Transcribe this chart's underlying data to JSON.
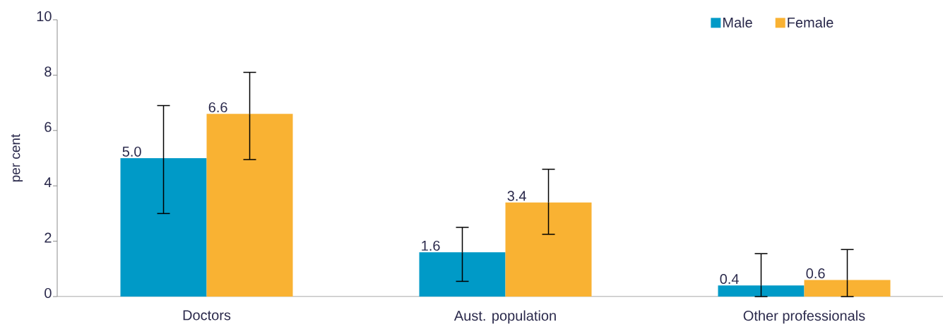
{
  "chart_data": {
    "type": "bar",
    "ylabel": "per cent",
    "categories": [
      "Doctors",
      "Aust. population",
      "Other professionals"
    ],
    "series": [
      {
        "name": "Male",
        "color": "#009ac7",
        "values": [
          5.0,
          1.6,
          0.4
        ],
        "value_labels": [
          "5.0",
          "1.6",
          "0.4"
        ],
        "errors": [
          [
            3.0,
            6.9
          ],
          [
            0.55,
            2.5
          ],
          [
            0.0,
            1.55
          ]
        ]
      },
      {
        "name": "Female",
        "color": "#f9b233",
        "values": [
          6.6,
          3.4,
          0.6
        ],
        "value_labels": [
          "6.6",
          "3.4",
          "0.6"
        ],
        "errors": [
          [
            4.95,
            8.1
          ],
          [
            2.25,
            4.6
          ],
          [
            0.0,
            1.7
          ]
        ]
      }
    ],
    "ylim": [
      0,
      10
    ],
    "yticks": [
      0,
      2,
      4,
      6,
      8,
      10
    ],
    "legend": "top right"
  }
}
